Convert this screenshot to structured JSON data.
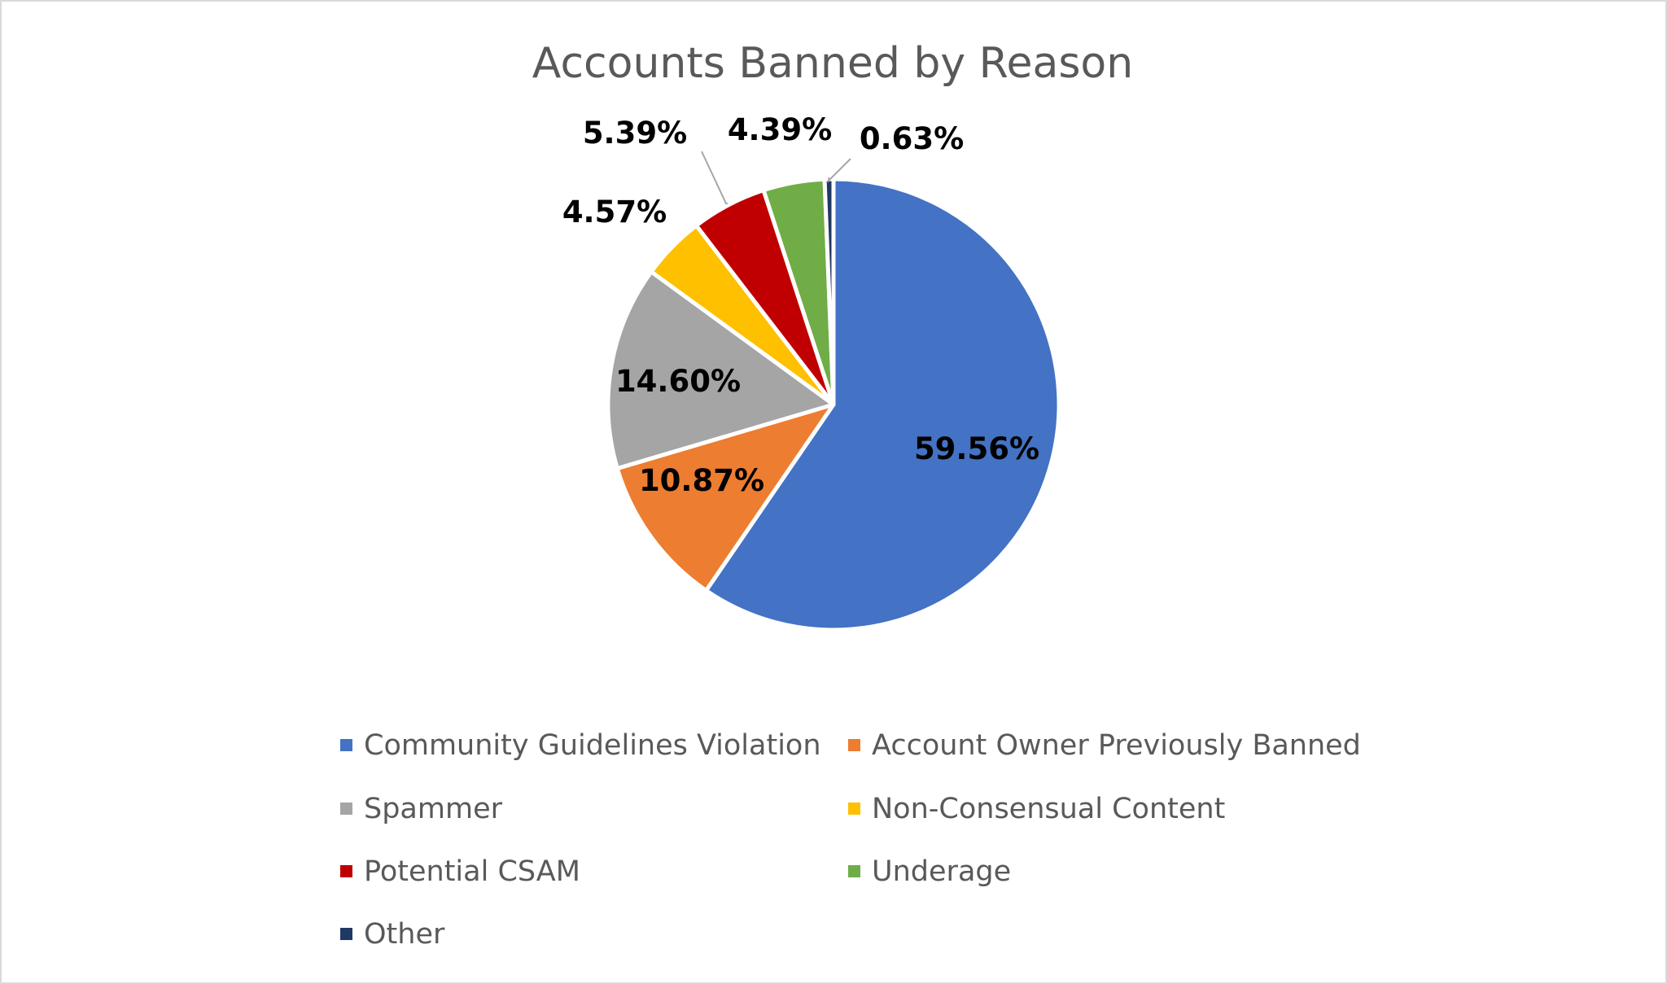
{
  "chart_data": {
    "type": "pie",
    "title": "Accounts Banned by Reason",
    "categories": [
      "Community Guidelines Violation",
      "Account Owner Previously Banned",
      "Spammer",
      "Non-Consensual Content",
      "Potential CSAM",
      "Underage",
      "Other"
    ],
    "values": [
      59.56,
      10.87,
      14.6,
      4.57,
      5.39,
      4.39,
      0.63
    ],
    "labels": [
      "59.56%",
      "10.87%",
      "14.60%",
      "4.57%",
      "5.39%",
      "4.39%",
      "0.63%"
    ],
    "colors": [
      "#4472C4",
      "#ED7D31",
      "#A5A5A5",
      "#FFC000",
      "#C00000",
      "#70AD47",
      "#203864"
    ],
    "legend_position": "bottom",
    "start_angle": "12 o'clock, clockwise"
  }
}
